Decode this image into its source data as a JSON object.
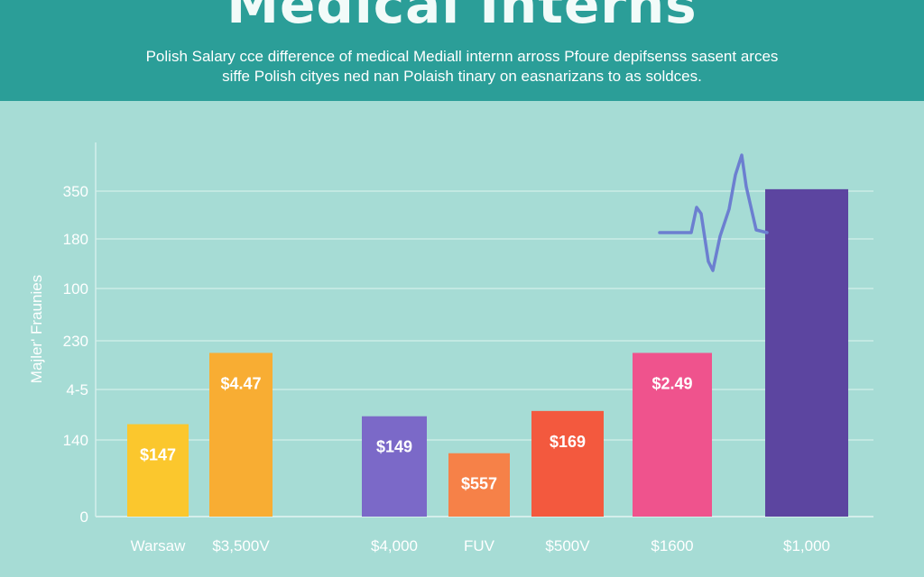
{
  "header": {
    "title": "Medical Interns",
    "subtitle": "Polish Salary cce difference of medical Mediall internn arross Pfoure depifsenss sasent arces siffe Polish cityes ned nan Polaish tinary on easnarizans to as soldces."
  },
  "colors": {
    "background": "#a6dcd5",
    "banner": "#2b9e98",
    "gridline": "#d4efeb",
    "tick_text": "#ffffff",
    "heartbeat": "#6c7fd0"
  },
  "chart_data": {
    "type": "bar",
    "title": "Medical Interns",
    "ylabel": "Majler' Fraunies",
    "xlabel": "",
    "y_ticks": [
      "350",
      "180",
      "100",
      "230",
      "4-5",
      "140",
      "0"
    ],
    "categories": [
      "Warsaw",
      "$3,500V",
      "$4,000",
      "FUV",
      "$500V",
      "$1600",
      "$1,000"
    ],
    "data_labels": [
      "$147",
      "$4.47",
      "$149",
      "$557",
      "$169",
      "$2.49",
      ""
    ],
    "values": [
      1.75,
      3.1,
      1.9,
      1.2,
      2.0,
      3.1,
      6.2
    ],
    "ylim": [
      0,
      7
    ],
    "bar_colors": [
      "#fbc72d",
      "#f8ad33",
      "#7b69c8",
      "#f68148",
      "#f3593e",
      "#ef538d",
      "#5c45a0"
    ],
    "grid": true,
    "legend": "none",
    "annotation": "heartbeat-line"
  }
}
